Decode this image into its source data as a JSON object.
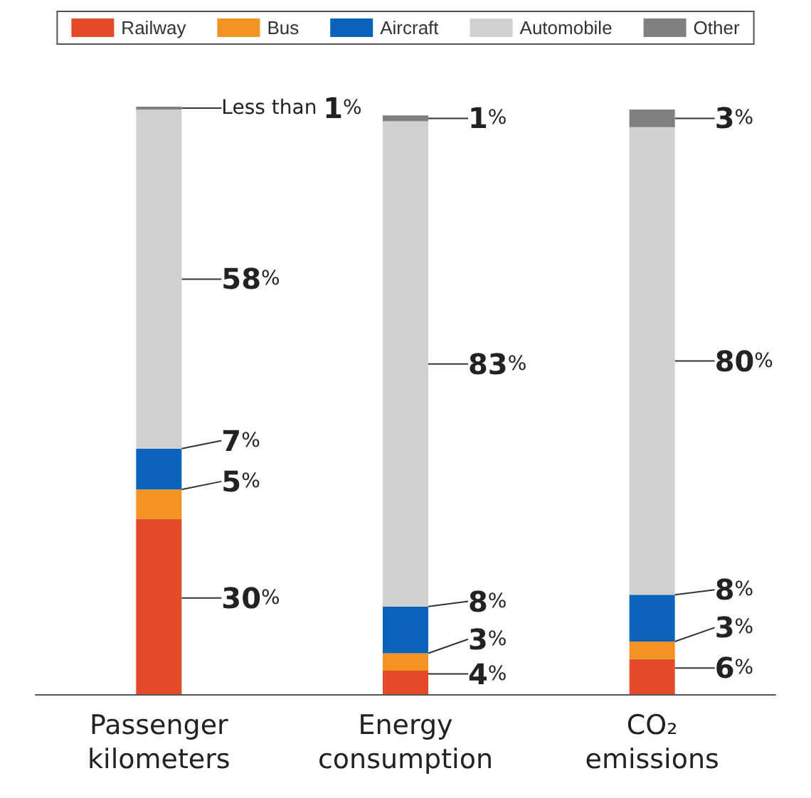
{
  "chart_data": {
    "type": "bar",
    "stacked": true,
    "categories": [
      "Passenger\nkilometers",
      "Energy\nconsumption",
      "CO₂\nemissions"
    ],
    "legend": "top",
    "grid": false,
    "tick_labels": "x",
    "series": [
      {
        "name": "Railway",
        "color": "#e34a27",
        "values": [
          30,
          4,
          6
        ],
        "value_labels": [
          "30%",
          "4%",
          "6%"
        ]
      },
      {
        "name": "Bus",
        "color": "#f39422",
        "values": [
          5,
          3,
          3
        ],
        "value_labels": [
          "5%",
          "3%",
          "3%"
        ]
      },
      {
        "name": "Aircraft",
        "color": "#0a63b8",
        "values": [
          7,
          8,
          8
        ],
        "value_labels": [
          "7%",
          "8%",
          "8%"
        ]
      },
      {
        "name": "Automobile",
        "color": "#d0d0d0",
        "values": [
          58,
          83,
          80
        ],
        "value_labels": [
          "58%",
          "83%",
          "80%"
        ]
      },
      {
        "name": "Other",
        "color": "#808080",
        "values": [
          0.5,
          1,
          3
        ],
        "value_labels": [
          "Less than 1%",
          "1%",
          "3%"
        ]
      }
    ]
  }
}
